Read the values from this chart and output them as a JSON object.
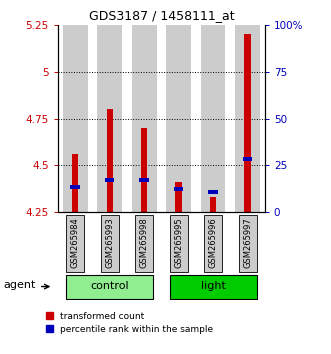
{
  "title": "GDS3187 / 1458111_at",
  "samples": [
    "GSM265984",
    "GSM265993",
    "GSM265998",
    "GSM265995",
    "GSM265996",
    "GSM265997"
  ],
  "groups": [
    {
      "name": "control",
      "indices": [
        0,
        1,
        2
      ],
      "color": "#90EE90"
    },
    {
      "name": "light",
      "indices": [
        3,
        4,
        5
      ],
      "color": "#00CC00"
    }
  ],
  "red_values": [
    4.56,
    4.8,
    4.7,
    4.41,
    4.33,
    5.2
  ],
  "blue_values": [
    4.385,
    4.425,
    4.425,
    4.375,
    4.36,
    4.535
  ],
  "ymin": 4.25,
  "ymax": 5.25,
  "yticks_left": [
    4.25,
    4.5,
    4.75,
    5.0,
    5.25
  ],
  "ytick_labels_left": [
    "4.25",
    "4.5",
    "4.75",
    "5",
    "5.25"
  ],
  "right_yticks_pct": [
    0,
    25,
    50,
    75,
    100
  ],
  "right_ytick_labels": [
    "0",
    "25",
    "50",
    "75",
    "100%"
  ],
  "gridlines_at": [
    4.5,
    4.75,
    5.0
  ],
  "bar_bottom": 4.25,
  "red_bar_width": 0.18,
  "blue_bar_width": 0.28,
  "blue_bar_thickness": 0.022,
  "red_color": "#CC0000",
  "blue_color": "#0000BB",
  "left_tick_color": "#CC0000",
  "right_tick_color": "#0000BB",
  "label_red": "transformed count",
  "label_blue": "percentile rank within the sample",
  "agent_label": "agent",
  "col_bg_color": "#CCCCCC",
  "group_light_color": "#90EE90",
  "group_dark_color": "#33CC33",
  "figsize": [
    3.31,
    3.54
  ],
  "dpi": 100
}
